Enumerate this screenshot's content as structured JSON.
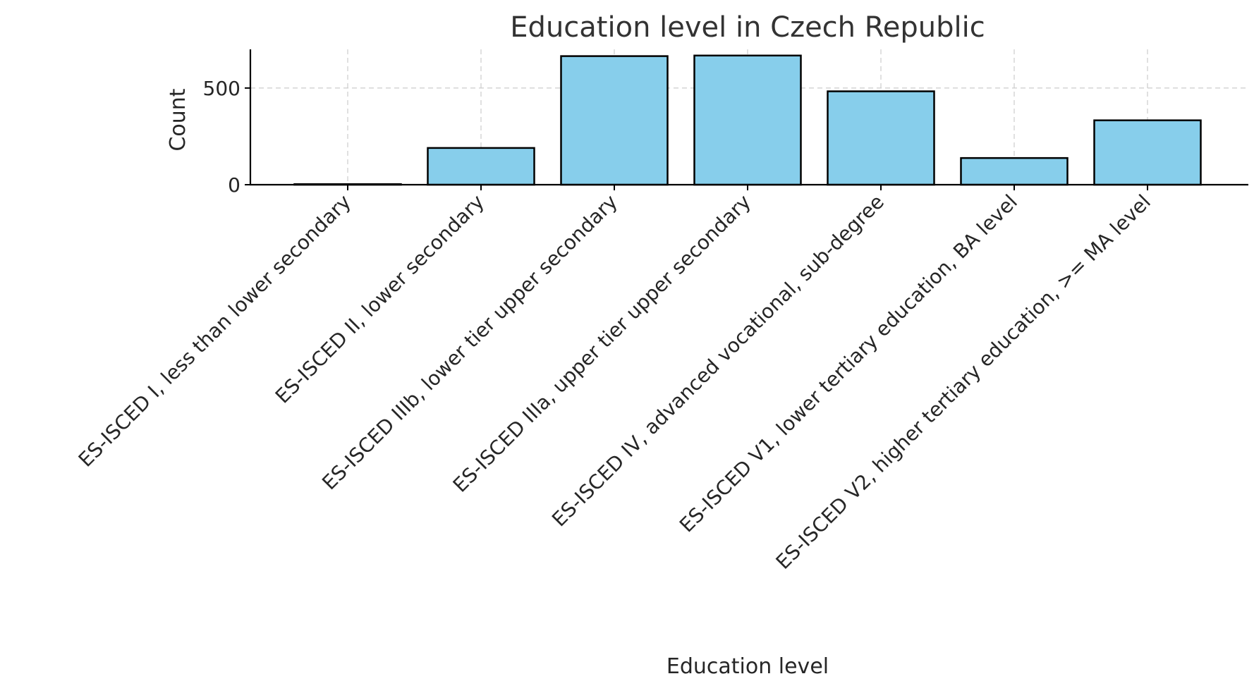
{
  "chart_data": {
    "type": "bar",
    "title": "Education level in Czech Republic",
    "xlabel": "Education level",
    "ylabel": "Count",
    "categories": [
      "ES-ISCED I, less than lower secondary",
      "ES-ISCED II, lower secondary",
      "ES-ISCED IIIb, lower tier upper secondary",
      "ES-ISCED IIIa, upper tier upper secondary",
      "ES-ISCED IV, advanced vocational, sub-degree",
      "ES-ISCED V1, lower tertiary education, BA level",
      "ES-ISCED V2, higher tertiary education, >= MA level"
    ],
    "values": [
      3,
      190,
      665,
      668,
      483,
      138,
      333
    ],
    "ylim": [
      0,
      700
    ],
    "yticks": [
      0,
      500
    ],
    "grid": true,
    "bar_color": "#87CEEB",
    "edge_color": "#000000"
  }
}
